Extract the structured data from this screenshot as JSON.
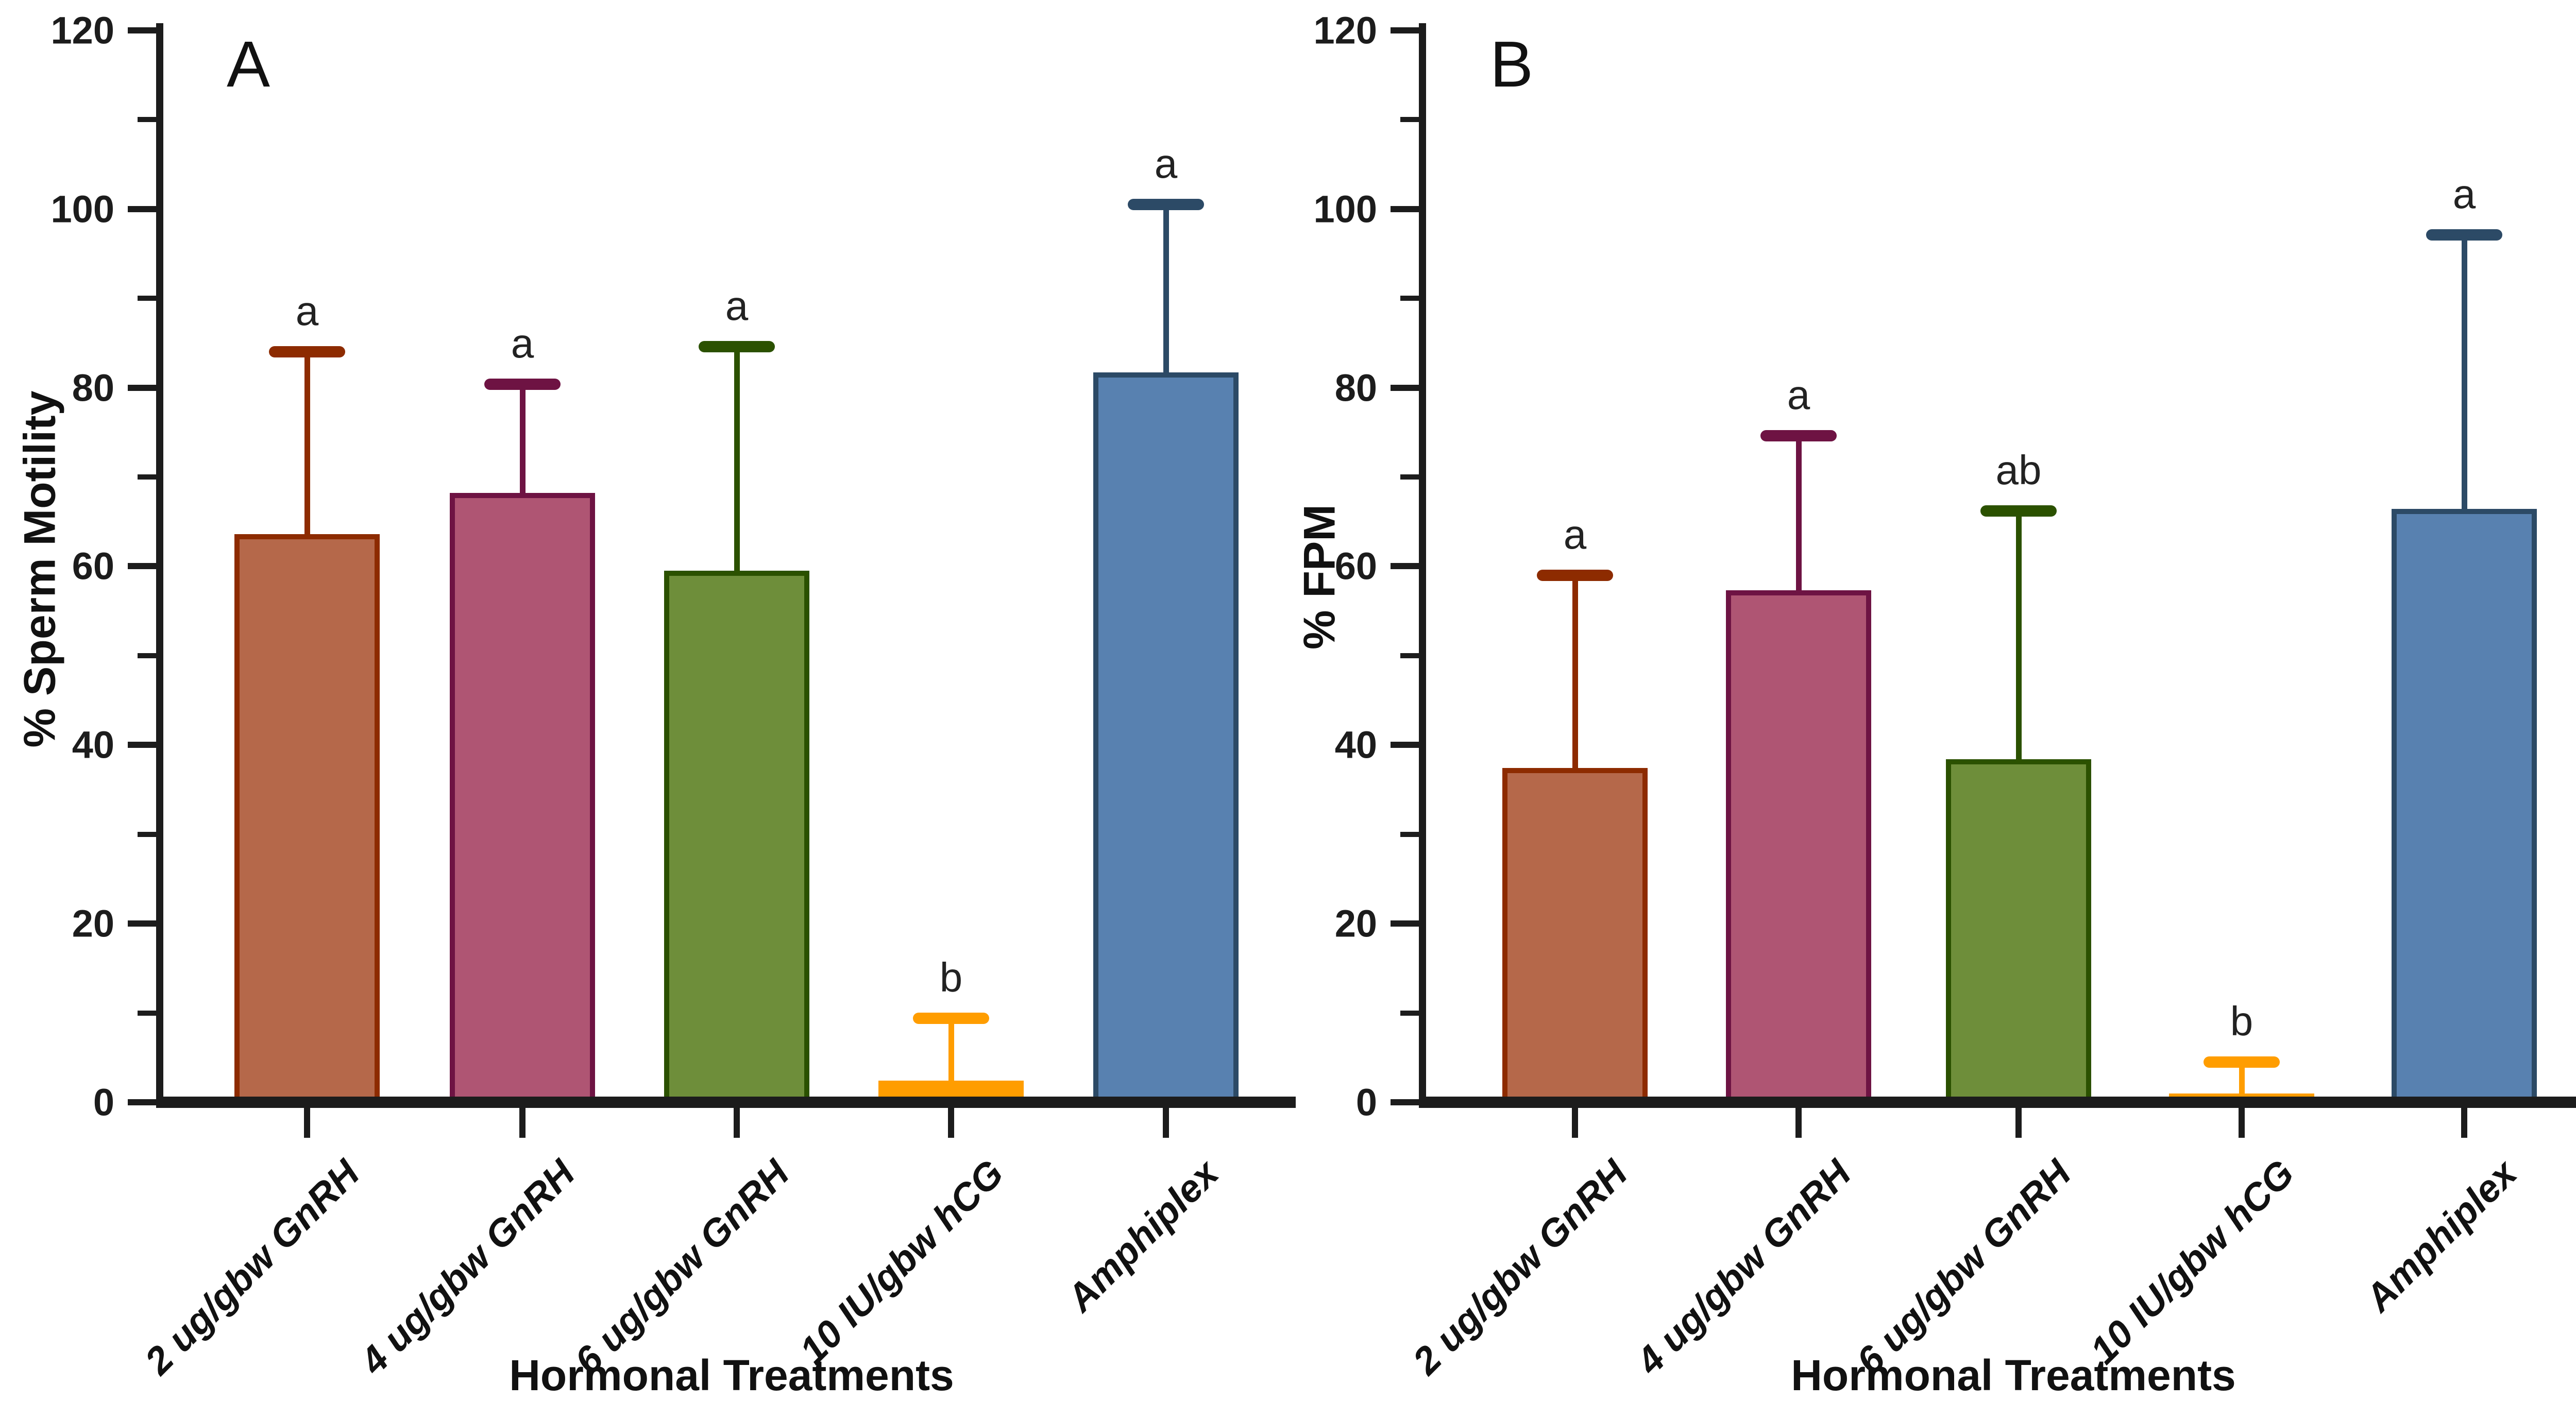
{
  "figure": {
    "background": "#FFFFFF",
    "axis_color": "#1C1C1C",
    "text_color": "#1C1C1C"
  },
  "chart_data": [
    {
      "type": "bar",
      "panel_letter": "A",
      "title": "",
      "categories": [
        "2 ug/gbw GnRH",
        "4 ug/gbw GnRH",
        "6 ug/gbw GnRH",
        "10 IU/gbw hCG",
        "Amphiplex"
      ],
      "values": [
        63.6,
        68.2,
        59.5,
        2.4,
        81.7
      ],
      "error_sd_upper": [
        20.4,
        12.2,
        25.1,
        7.0,
        18.8
      ],
      "error_tops": [
        84.0,
        80.4,
        84.6,
        9.4,
        100.5
      ],
      "sig_letters": [
        "a",
        "a",
        "a",
        "b",
        "a"
      ],
      "xlabel": "Hormonal Treatments",
      "ylabel": "% Sperm Motility",
      "ylim": [
        0,
        120
      ],
      "ytick_major": 20,
      "ytick_minor": 10,
      "ytick_labels": [
        "0",
        "20",
        "40",
        "60",
        "80",
        "100",
        "120"
      ],
      "grid": false,
      "legend": "none",
      "bar_fill_colors": [
        "#B5684A",
        "#AF5573",
        "#6E8E3A",
        "#FF9D00",
        "#5881B0"
      ],
      "bar_edge_colors": [
        "#8D2B00",
        "#6E1343",
        "#2B5100",
        "#FF9D00",
        "#2C4A66"
      ]
    },
    {
      "type": "bar",
      "panel_letter": "B",
      "title": "",
      "categories": [
        "2 ug/gbw GnRH",
        "4 ug/gbw GnRH",
        "6 ug/gbw GnRH",
        "10 IU/gbw hCG",
        "Amphiplex"
      ],
      "values": [
        37.4,
        57.3,
        38.4,
        1.0,
        66.4
      ],
      "error_sd_upper": [
        21.6,
        17.3,
        27.8,
        3.5,
        30.7
      ],
      "error_tops": [
        59.0,
        74.6,
        66.2,
        4.5,
        97.1
      ],
      "sig_letters": [
        "a",
        "a",
        "ab",
        "b",
        "a"
      ],
      "xlabel": "Hormonal Treatments",
      "ylabel": "% FPM",
      "ylim": [
        0,
        120
      ],
      "ytick_major": 20,
      "ytick_minor": 10,
      "ytick_labels": [
        "0",
        "20",
        "40",
        "60",
        "80",
        "100",
        "120"
      ],
      "grid": false,
      "legend": "none",
      "bar_fill_colors": [
        "#B5684A",
        "#AF5573",
        "#6E8E3A",
        "#FF9D00",
        "#5881B0"
      ],
      "bar_edge_colors": [
        "#8D2B00",
        "#6E1343",
        "#2B5100",
        "#FF9D00",
        "#2C4A66"
      ]
    }
  ]
}
